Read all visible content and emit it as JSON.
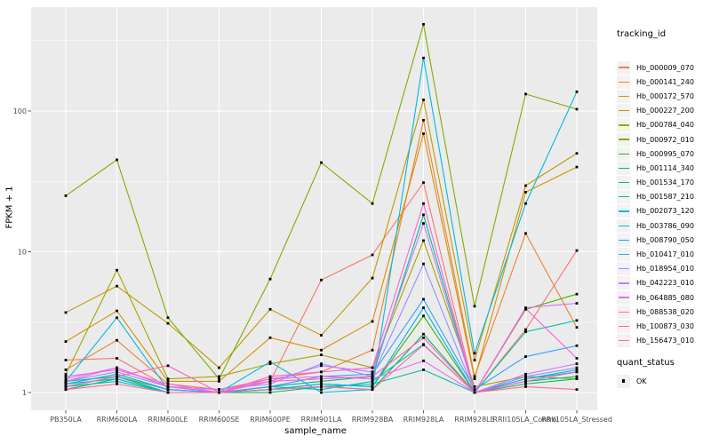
{
  "chart_data": {
    "type": "line",
    "title": "",
    "xlabel": "sample_name",
    "ylabel": "FPKM + 1",
    "y_scale": "log10",
    "y_ticks": [
      1,
      10,
      100
    ],
    "y_minor_ticks": [
      3.162,
      31.62,
      316.2
    ],
    "ylim": [
      0.75,
      540
    ],
    "grid": true,
    "panel_bg": "#EBEBEB",
    "grid_color": "#FFFFFF",
    "tick_label_color": "#4D4D4D",
    "point_marker": "black-square",
    "categories": [
      "PB350LA",
      "RRIM600LA",
      "RRIM600LE",
      "RRIM600SE",
      "RRIM600PE",
      "RRIM901LA",
      "RRIM928BA",
      "RRIM928LA",
      "RRIM928LE",
      "RRII105LA_Control",
      "RRII105LA_Stressed"
    ],
    "series": [
      {
        "name": "Hb_000009_070",
        "color": "#F8766D",
        "values": [
          1.7,
          1.75,
          1.1,
          1.0,
          1.2,
          6.3,
          9.5,
          31,
          1.0,
          2.8,
          10.2
        ]
      },
      {
        "name": "Hb_000141_240",
        "color": "#EA8331",
        "values": [
          1.45,
          2.35,
          1.15,
          1.05,
          1.25,
          1.4,
          2.0,
          86,
          1.3,
          13.5,
          2.9
        ]
      },
      {
        "name": "Hb_000172_570",
        "color": "#D89000",
        "values": [
          2.3,
          3.8,
          1.2,
          1.2,
          2.45,
          2.0,
          3.2,
          69,
          1.25,
          26.5,
          40
        ]
      },
      {
        "name": "Hb_000227_200",
        "color": "#C09B00",
        "values": [
          3.7,
          5.7,
          3.1,
          1.5,
          3.9,
          2.55,
          6.5,
          120,
          1.7,
          29.5,
          50
        ]
      },
      {
        "name": "Hb_000784_040",
        "color": "#A3A500",
        "values": [
          1.35,
          7.4,
          1.25,
          1.3,
          1.6,
          1.85,
          1.5,
          12,
          1.1,
          1.3,
          1.25
        ]
      },
      {
        "name": "Hb_000972_010",
        "color": "#7CAE00",
        "values": [
          25,
          45,
          3.4,
          1.25,
          6.4,
          43,
          22,
          413,
          4.1,
          132,
          103
        ]
      },
      {
        "name": "Hb_000995_070",
        "color": "#39B600",
        "values": [
          1.1,
          1.3,
          1.0,
          1.0,
          1.05,
          1.15,
          1.1,
          3.5,
          1.0,
          3.9,
          5.0
        ]
      },
      {
        "name": "Hb_001114_340",
        "color": "#00BB4E",
        "values": [
          1.05,
          1.25,
          1.0,
          1.0,
          1.0,
          1.1,
          1.05,
          2.6,
          1.0,
          1.15,
          1.25
        ]
      },
      {
        "name": "Hb_001534_170",
        "color": "#00BF7D",
        "values": [
          1.15,
          1.35,
          1.05,
          1.0,
          1.1,
          1.2,
          1.3,
          18.3,
          1.0,
          1.2,
          1.3
        ]
      },
      {
        "name": "Hb_001587_210",
        "color": "#00C1A3",
        "values": [
          1.1,
          1.2,
          1.0,
          1.0,
          1.05,
          1.1,
          1.15,
          1.45,
          1.0,
          2.7,
          3.25
        ]
      },
      {
        "name": "Hb_002073_120",
        "color": "#00BFC4",
        "values": [
          1.2,
          1.3,
          1.05,
          1.0,
          1.1,
          1.05,
          1.2,
          2.2,
          1.0,
          1.25,
          1.45
        ]
      },
      {
        "name": "Hb_003786_090",
        "color": "#00BAE0",
        "values": [
          1.2,
          3.4,
          1.05,
          1.0,
          1.65,
          1.0,
          1.05,
          238,
          1.9,
          22,
          137
        ]
      },
      {
        "name": "Hb_008790_050",
        "color": "#00B0F6",
        "values": [
          1.15,
          1.25,
          1.0,
          1.0,
          1.05,
          1.15,
          1.1,
          4.0,
          1.0,
          1.25,
          1.4
        ]
      },
      {
        "name": "Hb_010417_010",
        "color": "#35A2FF",
        "values": [
          1.1,
          1.3,
          1.05,
          1.0,
          1.1,
          1.3,
          1.35,
          4.6,
          1.05,
          1.8,
          2.15
        ]
      },
      {
        "name": "Hb_018954_010",
        "color": "#9590FF",
        "values": [
          1.2,
          1.4,
          1.1,
          1.05,
          1.15,
          1.6,
          1.3,
          8.2,
          1.0,
          1.3,
          1.5
        ]
      },
      {
        "name": "Hb_042223_010",
        "color": "#C77CFF",
        "values": [
          1.25,
          1.5,
          1.1,
          1.05,
          1.2,
          1.55,
          1.4,
          15.9,
          1.0,
          1.35,
          1.6
        ]
      },
      {
        "name": "Hb_064885_080",
        "color": "#E76BF3",
        "values": [
          1.3,
          1.45,
          1.15,
          1.0,
          1.25,
          1.3,
          1.25,
          1.68,
          1.0,
          4.0,
          4.3
        ]
      },
      {
        "name": "Hb_088538_020",
        "color": "#FA62DB",
        "values": [
          1.2,
          1.5,
          1.1,
          1.0,
          1.3,
          1.4,
          1.5,
          22,
          1.0,
          3.95,
          1.75
        ]
      },
      {
        "name": "Hb_100873_030",
        "color": "#FF62BC",
        "values": [
          1.1,
          1.3,
          1.55,
          1.0,
          1.2,
          1.25,
          1.3,
          2.45,
          1.0,
          1.2,
          1.4
        ]
      },
      {
        "name": "Hb_156473_010",
        "color": "#FF6A98",
        "values": [
          1.05,
          1.15,
          1.0,
          1.0,
          1.05,
          1.1,
          1.05,
          2.18,
          1.0,
          1.1,
          1.05
        ]
      }
    ],
    "legend": {
      "title": "tracking_id",
      "position": "right"
    },
    "quant_legend": {
      "title": "quant_status",
      "items": [
        {
          "label": "OK",
          "marker": "black-square"
        }
      ]
    }
  }
}
